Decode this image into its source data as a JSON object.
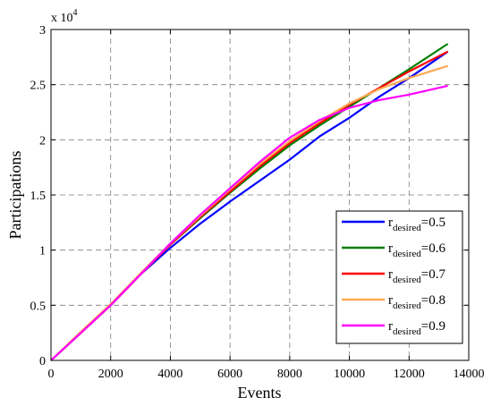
{
  "chart_data": {
    "type": "line",
    "xlabel": "Events",
    "ylabel": "Participations",
    "y_multiplier_label": "x 10",
    "y_multiplier_exponent": "4",
    "xlim": [
      0,
      14000
    ],
    "ylim": [
      0,
      30000
    ],
    "x_ticks": [
      0,
      2000,
      4000,
      6000,
      8000,
      10000,
      12000,
      14000
    ],
    "x_tick_labels": [
      "0",
      "2000",
      "4000",
      "6000",
      "8000",
      "10000",
      "12000",
      "14000"
    ],
    "y_ticks": [
      0,
      5000,
      10000,
      15000,
      20000,
      25000,
      30000
    ],
    "y_tick_labels": [
      "0",
      "0.5",
      "1",
      "1.5",
      "2",
      "2.5",
      "3"
    ],
    "grid": true,
    "legend_position": "bottom-right",
    "series": [
      {
        "name": "r",
        "sub": "desired",
        "suffix": "=0.5",
        "color": "#0000ff",
        "x": [
          0,
          1000,
          2000,
          3000,
          4000,
          5000,
          6000,
          7000,
          8000,
          9000,
          10000,
          11000,
          12000,
          13300
        ],
        "y": [
          0,
          2500,
          5000,
          7800,
          10200,
          12400,
          14400,
          16300,
          18200,
          20300,
          22000,
          23900,
          25600,
          28000
        ]
      },
      {
        "name": "r",
        "sub": "desired",
        "suffix": "=0.6",
        "color": "#007f00",
        "x": [
          0,
          1000,
          2000,
          3000,
          4000,
          5000,
          6000,
          7000,
          8000,
          9000,
          10000,
          11000,
          12000,
          13300
        ],
        "y": [
          0,
          2500,
          5000,
          7800,
          10500,
          12900,
          15200,
          17400,
          19500,
          21300,
          23000,
          24700,
          26400,
          28700
        ]
      },
      {
        "name": "r",
        "sub": "desired",
        "suffix": "=0.7",
        "color": "#ff0000",
        "x": [
          0,
          1000,
          2000,
          3000,
          4000,
          5000,
          6000,
          7000,
          8000,
          9000,
          10000,
          11000,
          12000,
          13300
        ],
        "y": [
          0,
          2500,
          5000,
          7800,
          10500,
          13000,
          15300,
          17600,
          19700,
          21500,
          23200,
          24700,
          26200,
          28000
        ]
      },
      {
        "name": "r",
        "sub": "desired",
        "suffix": "=0.8",
        "color": "#ffaa55",
        "x": [
          0,
          1000,
          2000,
          3000,
          4000,
          5000,
          6000,
          7000,
          8000,
          9000,
          10000,
          11000,
          12000,
          13300
        ],
        "y": [
          0,
          2600,
          5100,
          7900,
          10600,
          13100,
          15500,
          17800,
          19900,
          21700,
          23300,
          24600,
          25600,
          26700
        ]
      },
      {
        "name": "r",
        "sub": "desired",
        "suffix": "=0.9",
        "color": "#ff00ff",
        "x": [
          0,
          1000,
          2000,
          3000,
          4000,
          5000,
          6000,
          7000,
          8000,
          9000,
          10000,
          11000,
          12000,
          13300
        ],
        "y": [
          0,
          2500,
          5000,
          7800,
          10600,
          13200,
          15600,
          18000,
          20200,
          21800,
          22900,
          23600,
          24100,
          24900
        ]
      }
    ]
  }
}
